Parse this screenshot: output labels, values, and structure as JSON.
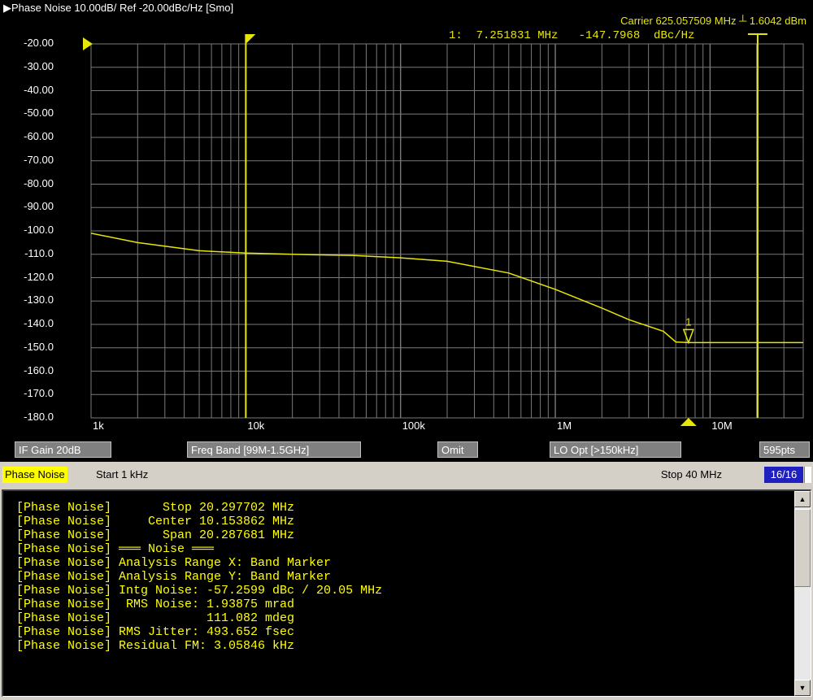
{
  "plot": {
    "title": "▶Phase Noise 10.00dB/ Ref -20.00dBc/Hz [Smo]",
    "carrier_text": "Carrier 625.057509 MHz ┴ 1.6042 dBm",
    "marker_readout": "1:  7.251831 MHz   -147.7968  dBc/Hz",
    "marker_number": "1",
    "colors": {
      "background": "#000000",
      "trace": "#e6e60a",
      "grid": "#7a7a7a",
      "marker": "#e6e60a"
    }
  },
  "chart_data": {
    "type": "line",
    "title": "Phase Noise 10.00dB/ Ref -20.00dBc/Hz [Smo]",
    "xscale": "log",
    "xlim": [
      1000,
      40000000
    ],
    "ylim": [
      -180,
      -20
    ],
    "grid": true,
    "y_ticks": [
      "-20.00",
      "-30.00",
      "-40.00",
      "-50.00",
      "-60.00",
      "-70.00",
      "-80.00",
      "-90.00",
      "-100.0",
      "-110.0",
      "-120.0",
      "-130.0",
      "-140.0",
      "-150.0",
      "-160.0",
      "-170.0",
      "-180.0"
    ],
    "x_ticks": [
      {
        "value": 1000,
        "label": "1k"
      },
      {
        "value": 10000,
        "label": "10k"
      },
      {
        "value": 100000,
        "label": "100k"
      },
      {
        "value": 1000000,
        "label": "1M"
      },
      {
        "value": 10000000,
        "label": "10M"
      }
    ],
    "series": [
      {
        "points": [
          [
            1000,
            -101
          ],
          [
            2000,
            -105
          ],
          [
            5000,
            -108.5
          ],
          [
            10000,
            -109.5
          ],
          [
            20000,
            -110
          ],
          [
            50000,
            -110.5
          ],
          [
            100000,
            -111.5
          ],
          [
            200000,
            -113
          ],
          [
            500000,
            -118
          ],
          [
            1000000,
            -125
          ],
          [
            2000000,
            -133
          ],
          [
            3000000,
            -138
          ],
          [
            5000000,
            -143
          ],
          [
            6000000,
            -147.5
          ],
          [
            7251831,
            -147.8
          ],
          [
            10000000,
            -147.8
          ],
          [
            20000000,
            -147.8
          ],
          [
            40000000,
            -147.8
          ]
        ]
      }
    ],
    "band_markers": [
      10000,
      20297702
    ],
    "marker": {
      "x": 7251831,
      "y": -147.7968
    }
  },
  "status": {
    "if_gain": "IF Gain 20dB",
    "freq_band": "Freq Band [99M-1.5GHz]",
    "omit": "Omit",
    "lo_opt": "LO Opt [>150kHz]",
    "points": "595pts"
  },
  "info": {
    "tab": "Phase Noise",
    "start": "Start 1 kHz",
    "stop": "Stop 40 MHz",
    "page": "16/16"
  },
  "console": {
    "lines": [
      "[Phase Noise]       Stop 20.297702 MHz",
      "[Phase Noise]     Center 10.153862 MHz",
      "[Phase Noise]       Span 20.287681 MHz",
      "[Phase Noise] ═══ Noise ═══",
      "[Phase Noise] Analysis Range X: Band Marker",
      "[Phase Noise] Analysis Range Y: Band Marker",
      "[Phase Noise] Intg Noise: -57.2599 dBc / 20.05 MHz",
      "[Phase Noise]  RMS Noise: 1.93875 mrad",
      "[Phase Noise]             111.082 mdeg",
      "[Phase Noise] RMS Jitter: 493.652 fsec",
      "[Phase Noise] Residual FM: 3.05846 kHz"
    ],
    "scroll_up": "▲",
    "scroll_down": "▼"
  }
}
